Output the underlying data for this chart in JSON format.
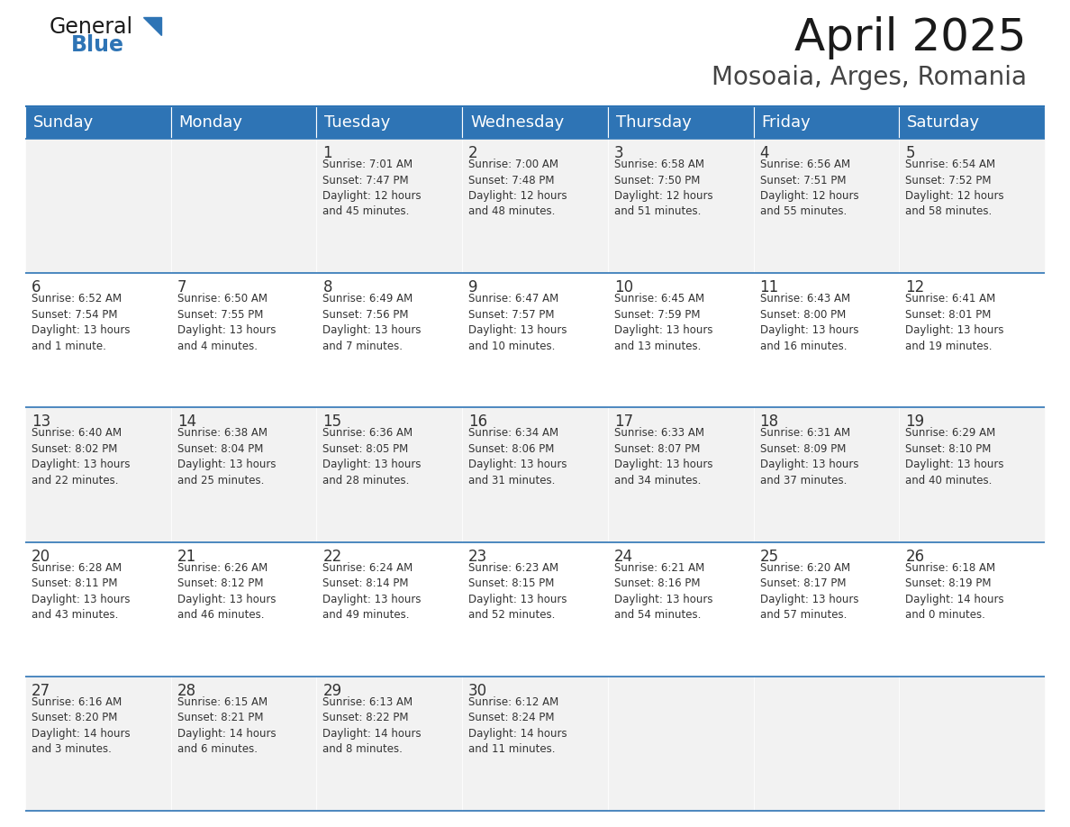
{
  "title": "April 2025",
  "subtitle": "Mosoaia, Arges, Romania",
  "header_color": "#2E74B5",
  "header_text_color": "#FFFFFF",
  "days_of_week": [
    "Sunday",
    "Monday",
    "Tuesday",
    "Wednesday",
    "Thursday",
    "Friday",
    "Saturday"
  ],
  "bg_color": "#FFFFFF",
  "cell_bg_even": "#F2F2F2",
  "cell_bg_odd": "#FFFFFF",
  "border_color": "#2E74B5",
  "text_color": "#333333",
  "weeks": [
    [
      {
        "day": "",
        "info": ""
      },
      {
        "day": "",
        "info": ""
      },
      {
        "day": "1",
        "info": "Sunrise: 7:01 AM\nSunset: 7:47 PM\nDaylight: 12 hours\nand 45 minutes."
      },
      {
        "day": "2",
        "info": "Sunrise: 7:00 AM\nSunset: 7:48 PM\nDaylight: 12 hours\nand 48 minutes."
      },
      {
        "day": "3",
        "info": "Sunrise: 6:58 AM\nSunset: 7:50 PM\nDaylight: 12 hours\nand 51 minutes."
      },
      {
        "day": "4",
        "info": "Sunrise: 6:56 AM\nSunset: 7:51 PM\nDaylight: 12 hours\nand 55 minutes."
      },
      {
        "day": "5",
        "info": "Sunrise: 6:54 AM\nSunset: 7:52 PM\nDaylight: 12 hours\nand 58 minutes."
      }
    ],
    [
      {
        "day": "6",
        "info": "Sunrise: 6:52 AM\nSunset: 7:54 PM\nDaylight: 13 hours\nand 1 minute."
      },
      {
        "day": "7",
        "info": "Sunrise: 6:50 AM\nSunset: 7:55 PM\nDaylight: 13 hours\nand 4 minutes."
      },
      {
        "day": "8",
        "info": "Sunrise: 6:49 AM\nSunset: 7:56 PM\nDaylight: 13 hours\nand 7 minutes."
      },
      {
        "day": "9",
        "info": "Sunrise: 6:47 AM\nSunset: 7:57 PM\nDaylight: 13 hours\nand 10 minutes."
      },
      {
        "day": "10",
        "info": "Sunrise: 6:45 AM\nSunset: 7:59 PM\nDaylight: 13 hours\nand 13 minutes."
      },
      {
        "day": "11",
        "info": "Sunrise: 6:43 AM\nSunset: 8:00 PM\nDaylight: 13 hours\nand 16 minutes."
      },
      {
        "day": "12",
        "info": "Sunrise: 6:41 AM\nSunset: 8:01 PM\nDaylight: 13 hours\nand 19 minutes."
      }
    ],
    [
      {
        "day": "13",
        "info": "Sunrise: 6:40 AM\nSunset: 8:02 PM\nDaylight: 13 hours\nand 22 minutes."
      },
      {
        "day": "14",
        "info": "Sunrise: 6:38 AM\nSunset: 8:04 PM\nDaylight: 13 hours\nand 25 minutes."
      },
      {
        "day": "15",
        "info": "Sunrise: 6:36 AM\nSunset: 8:05 PM\nDaylight: 13 hours\nand 28 minutes."
      },
      {
        "day": "16",
        "info": "Sunrise: 6:34 AM\nSunset: 8:06 PM\nDaylight: 13 hours\nand 31 minutes."
      },
      {
        "day": "17",
        "info": "Sunrise: 6:33 AM\nSunset: 8:07 PM\nDaylight: 13 hours\nand 34 minutes."
      },
      {
        "day": "18",
        "info": "Sunrise: 6:31 AM\nSunset: 8:09 PM\nDaylight: 13 hours\nand 37 minutes."
      },
      {
        "day": "19",
        "info": "Sunrise: 6:29 AM\nSunset: 8:10 PM\nDaylight: 13 hours\nand 40 minutes."
      }
    ],
    [
      {
        "day": "20",
        "info": "Sunrise: 6:28 AM\nSunset: 8:11 PM\nDaylight: 13 hours\nand 43 minutes."
      },
      {
        "day": "21",
        "info": "Sunrise: 6:26 AM\nSunset: 8:12 PM\nDaylight: 13 hours\nand 46 minutes."
      },
      {
        "day": "22",
        "info": "Sunrise: 6:24 AM\nSunset: 8:14 PM\nDaylight: 13 hours\nand 49 minutes."
      },
      {
        "day": "23",
        "info": "Sunrise: 6:23 AM\nSunset: 8:15 PM\nDaylight: 13 hours\nand 52 minutes."
      },
      {
        "day": "24",
        "info": "Sunrise: 6:21 AM\nSunset: 8:16 PM\nDaylight: 13 hours\nand 54 minutes."
      },
      {
        "day": "25",
        "info": "Sunrise: 6:20 AM\nSunset: 8:17 PM\nDaylight: 13 hours\nand 57 minutes."
      },
      {
        "day": "26",
        "info": "Sunrise: 6:18 AM\nSunset: 8:19 PM\nDaylight: 14 hours\nand 0 minutes."
      }
    ],
    [
      {
        "day": "27",
        "info": "Sunrise: 6:16 AM\nSunset: 8:20 PM\nDaylight: 14 hours\nand 3 minutes."
      },
      {
        "day": "28",
        "info": "Sunrise: 6:15 AM\nSunset: 8:21 PM\nDaylight: 14 hours\nand 6 minutes."
      },
      {
        "day": "29",
        "info": "Sunrise: 6:13 AM\nSunset: 8:22 PM\nDaylight: 14 hours\nand 8 minutes."
      },
      {
        "day": "30",
        "info": "Sunrise: 6:12 AM\nSunset: 8:24 PM\nDaylight: 14 hours\nand 11 minutes."
      },
      {
        "day": "",
        "info": ""
      },
      {
        "day": "",
        "info": ""
      },
      {
        "day": "",
        "info": ""
      }
    ]
  ],
  "logo_general_color": "#1a1a1a",
  "logo_blue_color": "#2E74B5",
  "title_fontsize": 36,
  "subtitle_fontsize": 20,
  "header_fontsize": 13,
  "day_num_fontsize": 12,
  "cell_text_fontsize": 8.5,
  "fig_width": 11.88,
  "fig_height": 9.18,
  "dpi": 100
}
